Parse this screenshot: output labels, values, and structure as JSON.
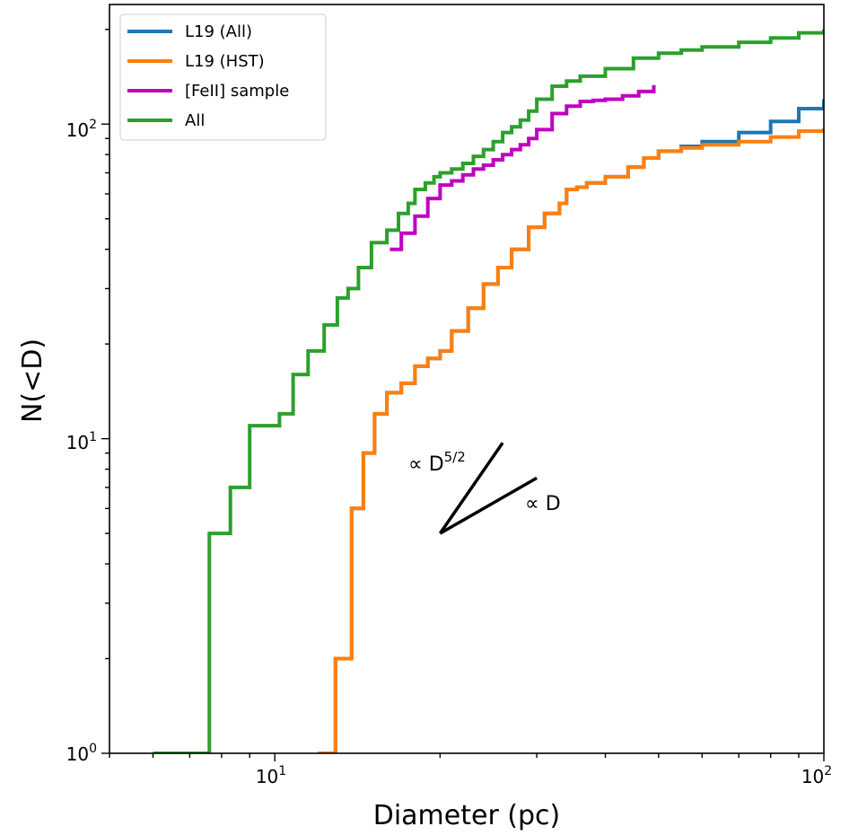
{
  "chart_data": {
    "type": "line",
    "title": "",
    "xlabel": "Diameter (pc)",
    "ylabel": "N(<D)",
    "xscale": "log",
    "yscale": "log",
    "xlim": [
      5,
      100
    ],
    "ylim": [
      1,
      240
    ],
    "grid": false,
    "legend_position": "top-left",
    "x_ticks": [
      {
        "value": 10,
        "base": "10",
        "exp": "1"
      },
      {
        "value": 100,
        "base": "10",
        "exp": "2"
      }
    ],
    "y_ticks": [
      {
        "value": 1,
        "base": "10",
        "exp": "0"
      },
      {
        "value": 10,
        "base": "10",
        "exp": "1"
      },
      {
        "value": 100,
        "base": "10",
        "exp": "2"
      }
    ],
    "annotations": [
      {
        "prefix": "∝ D",
        "sup": "5/2"
      },
      {
        "prefix": "∝ D",
        "sup": ""
      }
    ],
    "reference_lines": [
      {
        "label_index": 0,
        "slope": 2.5,
        "from": [
          20,
          5
        ],
        "to": [
          26,
          9.7
        ]
      },
      {
        "label_index": 1,
        "slope": 1,
        "from": [
          20,
          5
        ],
        "to": [
          30,
          7.5
        ]
      }
    ],
    "series": [
      {
        "name": "L19 (All)",
        "color": "#1f77b4",
        "x": [
          12.0,
          12.9,
          13.8,
          14.5,
          15.2,
          16.0,
          17.0,
          18.0,
          19.0,
          20.0,
          21.0,
          22.5,
          24.0,
          25.5,
          27.0,
          29.0,
          31.0,
          33.0,
          34.0,
          35.5,
          37.0,
          40.0,
          44.0,
          47.0,
          50.0,
          55.0,
          60.0,
          70.0,
          80.0,
          90.0,
          100.0
        ],
        "y": [
          1,
          2,
          6,
          9,
          12,
          14,
          15,
          17,
          18,
          19,
          22,
          26,
          31,
          35,
          40,
          47,
          52,
          56,
          62,
          63,
          65,
          68,
          73,
          78,
          82,
          85,
          88,
          94,
          102,
          112,
          120
        ]
      },
      {
        "name": "L19 (HST)",
        "color": "#ff7f0e",
        "x": [
          12.0,
          12.9,
          13.8,
          14.5,
          15.2,
          16.0,
          17.0,
          18.0,
          19.0,
          20.0,
          21.0,
          22.5,
          24.0,
          25.5,
          27.0,
          29.0,
          31.0,
          33.0,
          34.0,
          35.5,
          37.0,
          40.0,
          44.0,
          47.0,
          50.0,
          55.0,
          60.0,
          70.0,
          80.0,
          90.0,
          100.0
        ],
        "y": [
          1,
          2,
          6,
          9,
          12,
          14,
          15,
          17,
          18,
          19,
          22,
          26,
          31,
          35,
          40,
          47,
          52,
          56,
          62,
          63,
          65,
          68,
          73,
          78,
          82,
          84,
          86,
          88,
          91,
          95,
          97
        ]
      },
      {
        "name": "[FeII] sample",
        "color": "#bf00bf",
        "x": [
          16.2,
          17.0,
          18.0,
          19.0,
          20.0,
          21.0,
          22.0,
          23.0,
          24.0,
          25.0,
          26.0,
          27.0,
          28.0,
          29.0,
          30.0,
          32.0,
          34.0,
          36.0,
          38.0,
          40.0,
          43.0,
          46.0,
          49.0
        ],
        "y": [
          40,
          45,
          51,
          58,
          64,
          66,
          69,
          72,
          74,
          77,
          80,
          83,
          86,
          90,
          96,
          108,
          114,
          118,
          119,
          120,
          123,
          127,
          133
        ]
      },
      {
        "name": "All",
        "color": "#2ca02c",
        "x": [
          6.0,
          7.6,
          8.3,
          9.0,
          10.2,
          10.8,
          11.5,
          12.3,
          13.0,
          13.6,
          14.2,
          15.0,
          16.0,
          16.8,
          17.5,
          18.0,
          18.8,
          19.5,
          20.0,
          21.0,
          22.0,
          23.0,
          24.0,
          25.0,
          26.0,
          27.0,
          28.0,
          29.0,
          30.0,
          32.0,
          34.0,
          36.0,
          40.0,
          45.0,
          50.0,
          55.0,
          60.0,
          70.0,
          80.0,
          90.0,
          100.0
        ],
        "y": [
          1,
          5,
          7,
          11,
          12,
          16,
          19,
          23,
          28,
          30,
          35,
          42,
          46,
          52,
          56,
          62,
          65,
          68,
          70,
          72,
          75,
          79,
          83,
          88,
          94,
          98,
          103,
          110,
          120,
          132,
          137,
          142,
          150,
          162,
          168,
          172,
          176,
          182,
          188,
          195,
          200
        ]
      }
    ]
  }
}
